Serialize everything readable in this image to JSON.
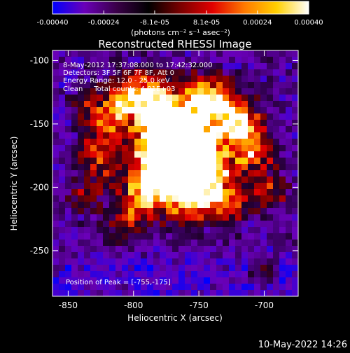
{
  "colorbar": {
    "tick_labels": [
      "-0.00040",
      "-0.00024",
      "-8.1e-05",
      "8.1e-05",
      "0.00024",
      "0.00040"
    ],
    "tick_values": [
      -0.0004,
      -0.00024,
      -8.1e-05,
      8.1e-05,
      0.00024,
      0.0004
    ],
    "unit_label": "(photons cm⁻² s⁻¹ asec⁻²)",
    "range": [
      -0.0004,
      0.0004
    ],
    "colors": [
      "#0000ff",
      "#6a00b8",
      "#3a0048",
      "#000000",
      "#7a0000",
      "#e20000",
      "#ff7a00",
      "#ffd000",
      "#ffffff"
    ]
  },
  "plot": {
    "title": "Reconstructed RHESSI Image",
    "info_lines": [
      "8-May-2012 17:37:08.000 to 17:42:32.000",
      "Detectors: 3F 5F 6F 7F 8F, Att 0",
      "Energy Range: 12.0 - 25.0 keV",
      "Clean     Total counts: 4.91E+03"
    ],
    "peak_label": "Position of Peak = [-755,-175]"
  },
  "chart_data": {
    "type": "heatmap",
    "title": "Reconstructed RHESSI Image",
    "xlabel": "Heliocentric X (arcsec)",
    "ylabel": "Heliocentric Y (arcsec)",
    "xlim": [
      -862,
      -674
    ],
    "ylim": [
      -286,
      -92
    ],
    "xticks": [
      -850,
      -800,
      -750,
      -700
    ],
    "yticks": [
      -250,
      -200,
      -150,
      -100
    ],
    "xtick_labels": [
      "-850",
      "-800",
      "-750",
      "-700"
    ],
    "ytick_labels": [
      "-250",
      "-200",
      "-150",
      "-100"
    ],
    "grid": false,
    "peak_position": [
      -755,
      -175
    ],
    "colorbar_range": [
      -0.0004,
      0.0004
    ]
  },
  "footer": {
    "timestamp": "10-May-2022 14:26"
  }
}
